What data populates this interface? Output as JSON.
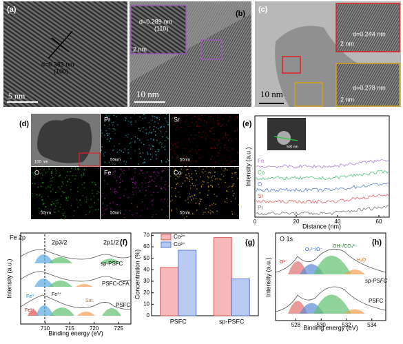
{
  "panels": {
    "a": {
      "label": "(a)",
      "d_spacing": "d=0.383 nm",
      "plane": "(100)",
      "scale": "5 nm"
    },
    "b": {
      "label": "(b)",
      "d_spacing": "d=0.289 nm",
      "plane": "(110)",
      "inset_scale": "2 nm",
      "scale": "10 nm"
    },
    "c": {
      "label": "(c)",
      "d_top": "d=0.244 nm",
      "scale_top": "2 nm",
      "d_bottom": "d=0.278 nm",
      "scale_bottom": "2 nm",
      "scale": "10 nm"
    },
    "d": {
      "label": "(d)",
      "scale": "100 nm",
      "maps": [
        {
          "element": "Pr",
          "scale": "50nm",
          "color": "#2ab8c4"
        },
        {
          "element": "Sr",
          "scale": "50nm",
          "color": "#8a0a0a"
        },
        {
          "element": "O",
          "scale": "50nm",
          "color": "#2a9a2a"
        },
        {
          "element": "Fe",
          "scale": "50nm",
          "color": "#a41ea4"
        },
        {
          "element": "Co",
          "scale": "50nm",
          "color": "#dca420"
        }
      ]
    },
    "e": {
      "label": "(e)",
      "inset_scale": "500 nm",
      "traces": [
        {
          "name": "Fe",
          "color": "#b07cd8"
        },
        {
          "name": "Co",
          "color": "#4fbf7a"
        },
        {
          "name": "O",
          "color": "#5a7fd8"
        },
        {
          "name": "Sr",
          "color": "#e06060"
        },
        {
          "name": "Pr",
          "color": "#777777"
        }
      ],
      "xlabel": "Distance (nm)",
      "ylabel": "Intensity (a.u.)",
      "xlim": [
        0,
        65
      ],
      "xticks": [
        0,
        20,
        40,
        60
      ]
    },
    "f": {
      "label": "(f)",
      "title": "Fe 2p",
      "peak1": "2p3/2",
      "peak2": "2p1/2",
      "samples": [
        "sp-PSFC",
        "PSFC-CFA",
        "PSFC"
      ],
      "species": [
        "Fe⁰",
        "Fe²⁺",
        "Fe³⁺",
        "Sat."
      ],
      "xlabel": "Binding energy (eV)",
      "ylabel": "Intensity (a.u.)",
      "xlim": [
        705,
        727.5
      ],
      "xticks": [
        710,
        715,
        720,
        725
      ]
    },
    "h": {
      "label": "(h)",
      "title": "O 1s",
      "species": [
        "O²⁻",
        "O₂²⁻/O⁻",
        "OH⁻/CO₃²⁻",
        "H₂O"
      ],
      "samples": [
        "sp-PSFC",
        "PSFC"
      ],
      "xlabel": "Binding energy (eV)",
      "ylabel": "Intensity (a.u.)",
      "xlim": [
        526.4,
        535.1
      ],
      "xticks": [
        528,
        530,
        532,
        534
      ]
    }
  },
  "chart_data": {
    "type": "bar",
    "label": "(g)",
    "categories": [
      "PSFC",
      "sp-PSFC"
    ],
    "series": [
      {
        "name": "Co²⁺",
        "color": "#f6b8b8",
        "values": [
          42,
          68
        ]
      },
      {
        "name": "Co³⁺",
        "color": "#b8caf2",
        "values": [
          57,
          32
        ]
      }
    ],
    "ylabel": "Concentration (%)",
    "ylim": [
      0,
      72
    ],
    "yticks": [
      0,
      10,
      20,
      30,
      40,
      50,
      60,
      70
    ]
  }
}
